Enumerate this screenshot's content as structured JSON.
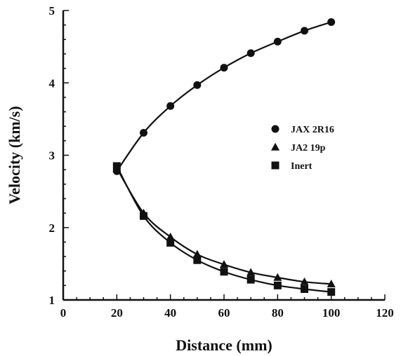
{
  "chart_data": {
    "type": "line",
    "title": "",
    "xlabel": "Distance (mm)",
    "ylabel": "Velocity (km/s)",
    "xlim": [
      0,
      120
    ],
    "ylim": [
      1,
      5
    ],
    "x_ticks": [
      0,
      20,
      40,
      60,
      80,
      100,
      120
    ],
    "y_ticks": [
      1,
      2,
      3,
      4,
      5
    ],
    "grid": false,
    "legend_position": "right-middle",
    "series": [
      {
        "name": "JAX 2R16",
        "marker": "circle",
        "x": [
          20,
          30,
          40,
          50,
          60,
          70,
          80,
          90,
          100
        ],
        "y": [
          2.78,
          3.31,
          3.68,
          3.97,
          4.21,
          4.41,
          4.57,
          4.72,
          4.84
        ]
      },
      {
        "name": "JA2 19p",
        "marker": "triangle",
        "x": [
          20,
          30,
          40,
          50,
          60,
          70,
          80,
          90,
          100
        ],
        "y": [
          2.82,
          2.2,
          1.87,
          1.63,
          1.49,
          1.38,
          1.31,
          1.25,
          1.22
        ]
      },
      {
        "name": "Inert",
        "marker": "square",
        "x": [
          20,
          30,
          40,
          50,
          60,
          70,
          80,
          90,
          100
        ],
        "y": [
          2.85,
          2.16,
          1.79,
          1.55,
          1.39,
          1.28,
          1.2,
          1.15,
          1.11
        ]
      }
    ],
    "colors": {
      "ink": "#111111"
    }
  }
}
